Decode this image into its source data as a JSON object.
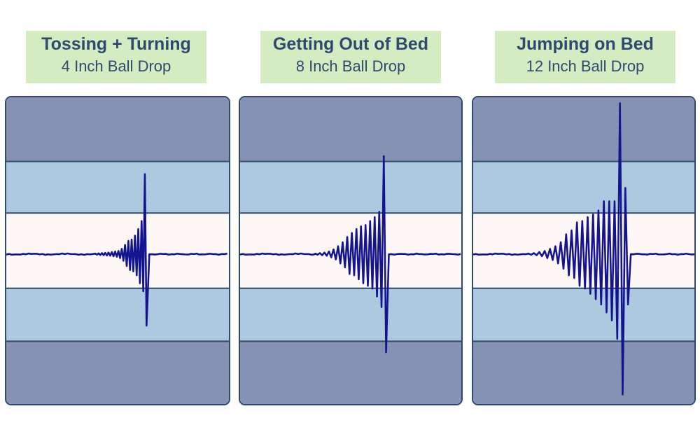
{
  "chart_data": [
    {
      "type": "line",
      "title": "Tossing + Turning",
      "subtitle": "4 Inch Ball Drop",
      "ylim": [
        -4,
        4
      ],
      "series": [
        {
          "values": [
            0,
            0,
            0,
            0,
            0,
            0.02,
            -0.02,
            0.03,
            -0.03,
            0.04,
            -0.04,
            0.05,
            -0.05,
            0.06,
            -0.06,
            0.08,
            -0.08,
            0.1,
            -0.1,
            0.12,
            -0.15,
            0.2,
            -0.25,
            0.35,
            -0.45,
            0.5,
            -0.6,
            0.55,
            -0.65,
            0.7,
            -0.8,
            0.95,
            -1.1,
            1.25,
            -1.4,
            3.02,
            -2.7,
            0,
            0,
            0,
            0,
            0,
            0,
            0,
            0,
            0,
            0,
            0,
            0,
            0
          ]
        }
      ]
    },
    {
      "type": "line",
      "title": "Getting Out of Bed",
      "subtitle": "8 Inch Ball Drop",
      "ylim": [
        -4,
        4
      ],
      "series": [
        {
          "values": [
            0,
            0,
            0,
            0,
            0,
            0,
            0,
            0,
            0,
            0,
            0,
            0.02,
            -0.02,
            0.04,
            -0.04,
            0.06,
            -0.06,
            0.1,
            -0.12,
            0.18,
            -0.2,
            0.3,
            -0.35,
            0.45,
            -0.5,
            0.65,
            -0.75,
            0.8,
            -0.8,
            0.95,
            -0.95,
            1.05,
            -1.1,
            1.1,
            -1.2,
            1.25,
            -1.3,
            1.4,
            -1.6,
            1.6,
            -2.0,
            3.7,
            -3.7,
            0,
            0,
            0,
            0,
            0,
            0,
            0,
            0,
            0,
            0,
            0,
            0,
            0,
            0,
            0,
            0,
            0
          ]
        }
      ]
    },
    {
      "type": "line",
      "title": "Jumping on Bed",
      "subtitle": "12 Inch Ball Drop",
      "ylim": [
        -4,
        4
      ],
      "series": [
        {
          "values": [
            0,
            0,
            0,
            0,
            0,
            0,
            0,
            0,
            0,
            0,
            0,
            0.02,
            -0.02,
            0.04,
            -0.04,
            0.08,
            -0.08,
            0.12,
            -0.15,
            0.2,
            -0.22,
            0.3,
            -0.35,
            0.45,
            -0.55,
            0.75,
            -0.8,
            0.9,
            -0.9,
            1.2,
            -1.2,
            1.25,
            -1.3,
            1.4,
            -1.5,
            1.5,
            -1.7,
            1.65,
            -1.9,
            2.0,
            -2.2,
            2.0,
            -2.5,
            2.0,
            -3.2,
            5.7,
            -5.3,
            2.5,
            -1.9,
            0,
            0,
            0,
            0,
            0,
            0,
            0,
            0,
            0,
            0,
            0
          ]
        }
      ]
    }
  ]
}
